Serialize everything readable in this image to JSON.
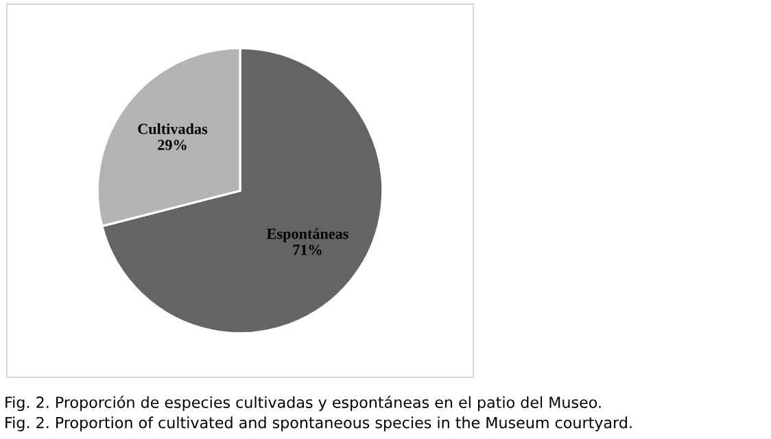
{
  "chart_data": {
    "type": "pie",
    "categories": [
      "Espontáneas",
      "Cultivadas"
    ],
    "values": [
      71,
      29
    ],
    "colors": [
      "#646464",
      "#b3b3b3"
    ],
    "value_labels": [
      "71%",
      "29%"
    ],
    "legend": false,
    "annotations": [
      "Fig. 2. Proporción de especies cultivadas y espontáneas en el patio del Museo.",
      "Fig. 2. Proportion of cultivated and spontaneous species in the Museum courtyard."
    ]
  }
}
